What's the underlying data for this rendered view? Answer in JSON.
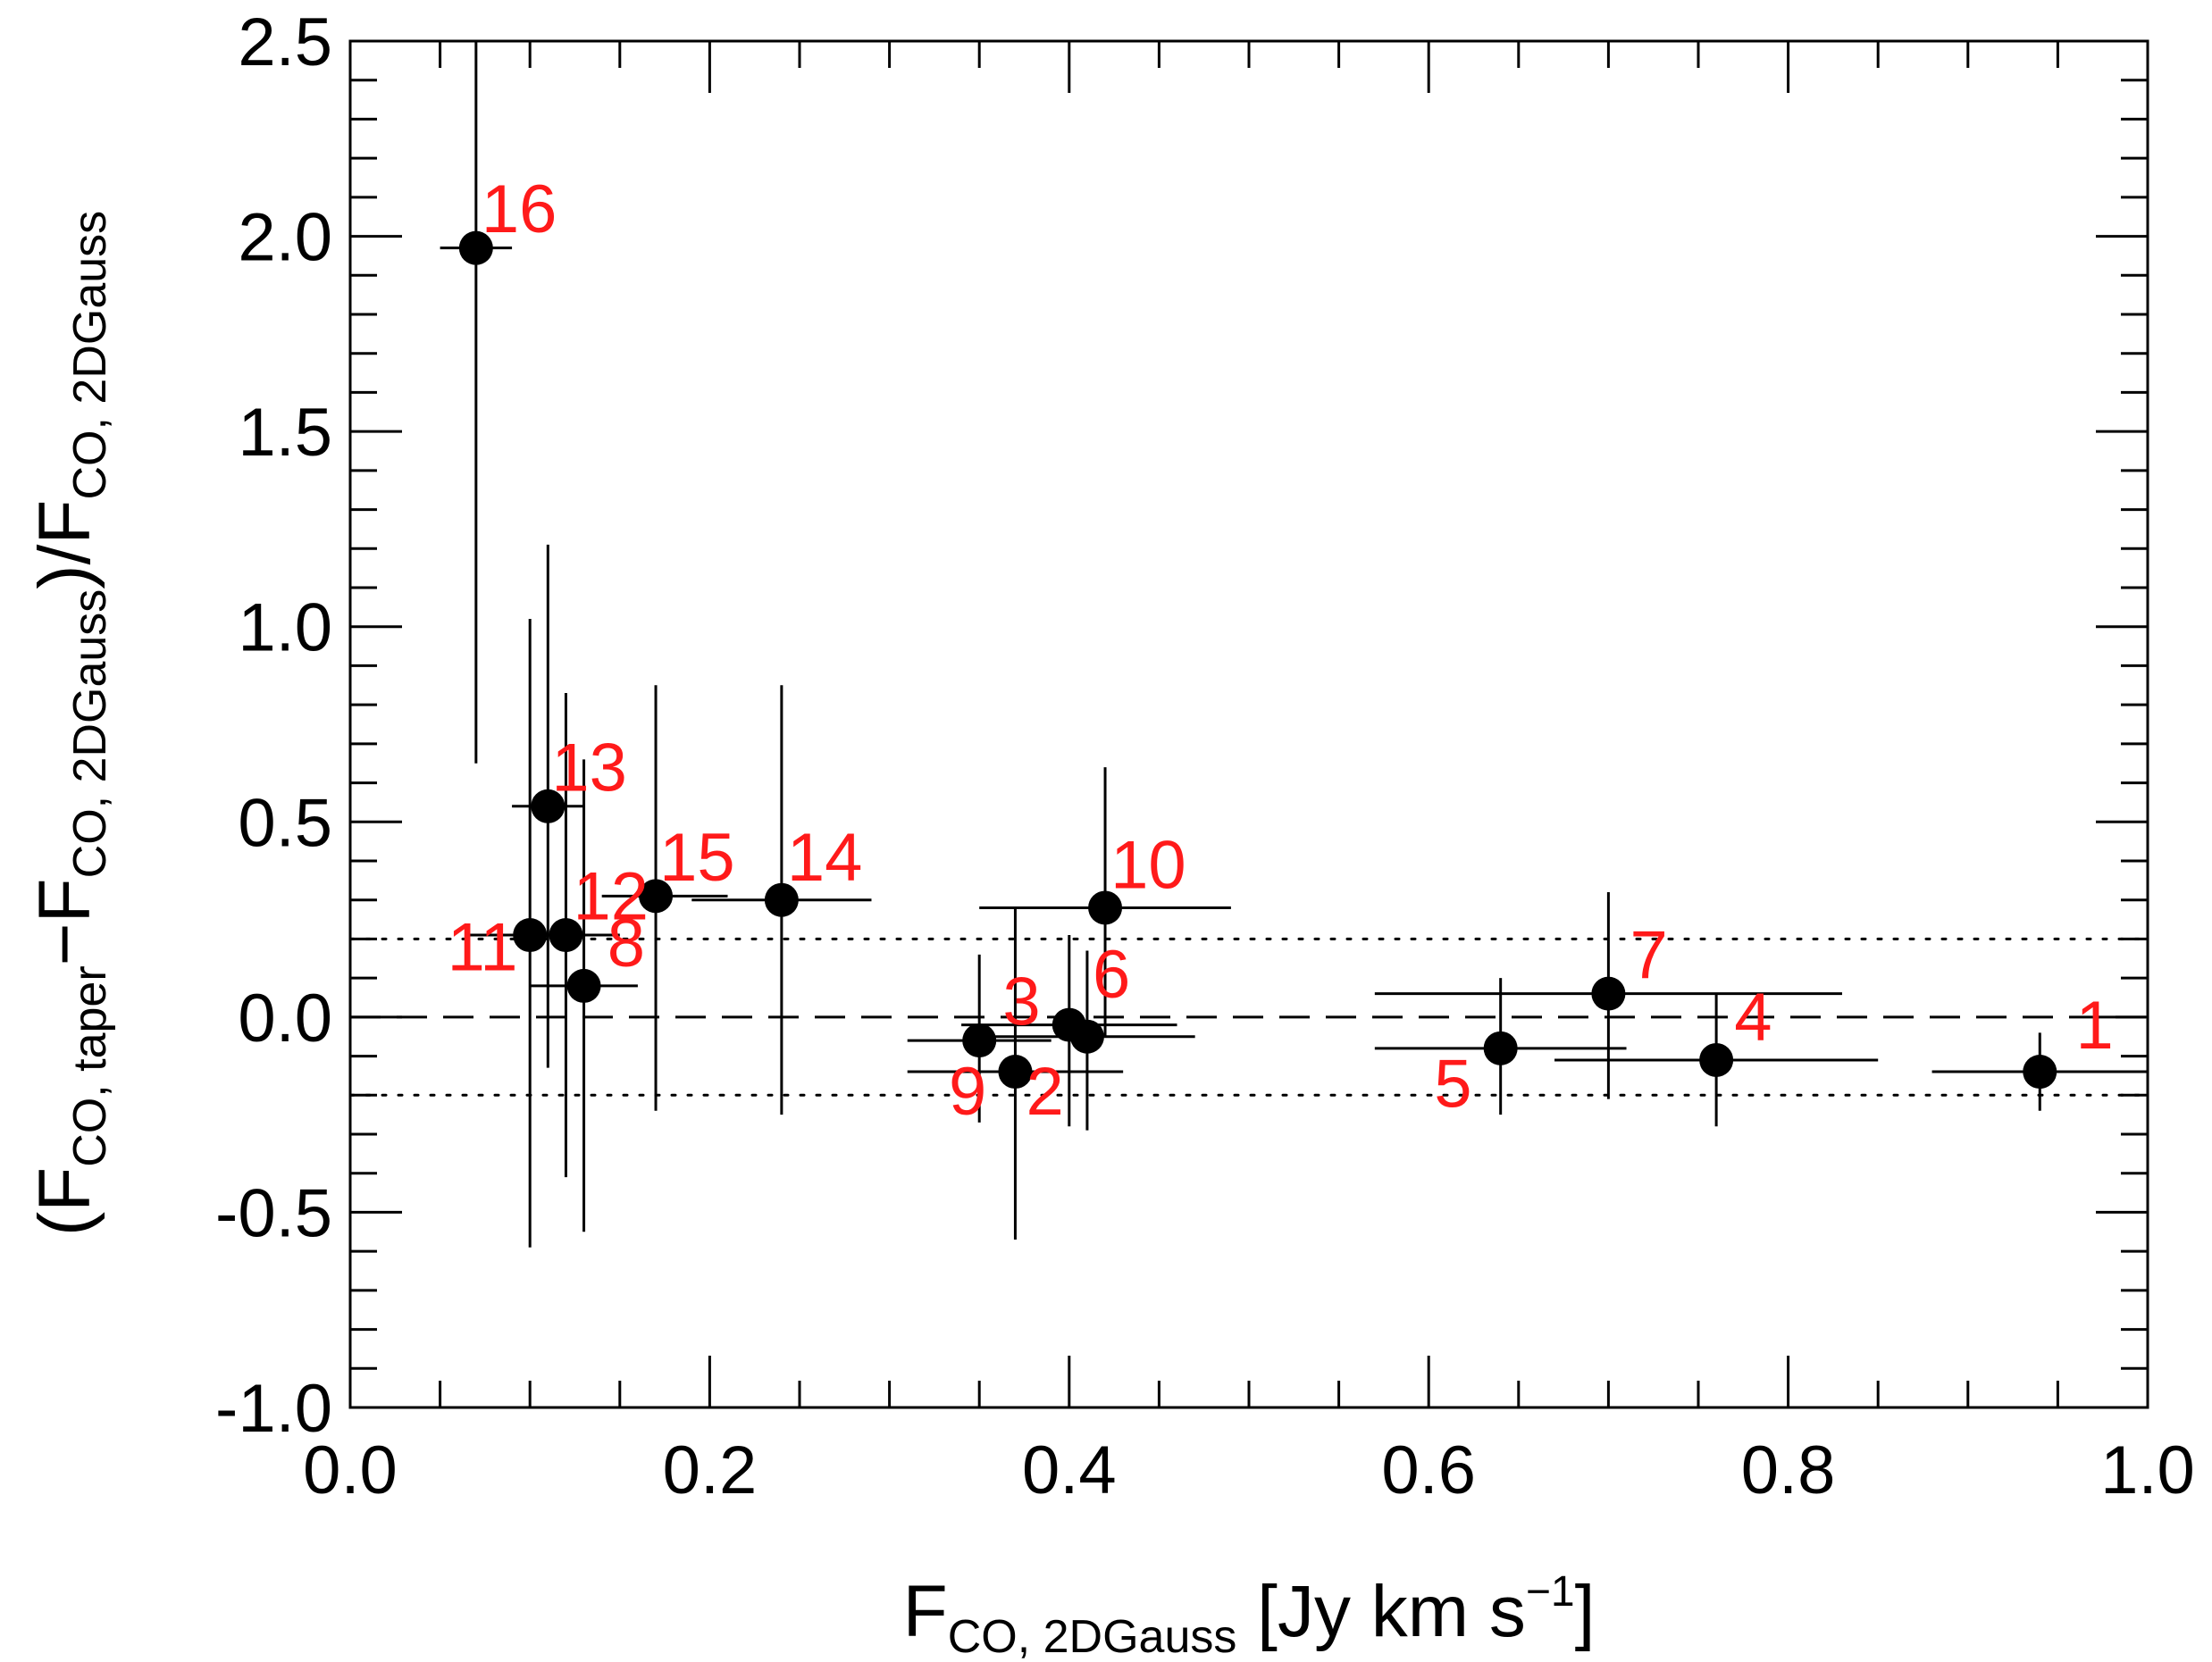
{
  "chart_data": {
    "type": "scatter",
    "title": "",
    "xlabel": {
      "base": "F",
      "sub": "CO, 2DGauss",
      "unit_prefix": " [Jy km s",
      "unit_sup": "−1",
      "unit_suffix": "]"
    },
    "ylabel": {
      "open": "(F",
      "sub1": "CO, taper",
      "minus": "−F",
      "sub2": "CO, 2DGauss",
      "mid": ")/F",
      "sub3": "CO, 2DGauss"
    },
    "xlim": [
      0.0,
      1.0
    ],
    "ylim": [
      -1.0,
      2.5
    ],
    "xticks": [
      0.0,
      0.2,
      0.4,
      0.6,
      0.8,
      1.0
    ],
    "xtick_labels": [
      "0.0",
      "0.2",
      "0.4",
      "0.6",
      "0.8",
      "1.0"
    ],
    "xminor_step": 0.05,
    "yticks": [
      -1.0,
      -0.5,
      0.0,
      0.5,
      1.0,
      1.5,
      2.0,
      2.5
    ],
    "ytick_labels": [
      "-1.0",
      "-0.5",
      "0.0",
      "0.5",
      "1.0",
      "1.5",
      "2.0",
      "2.5"
    ],
    "yminor_step": 0.1,
    "reference_lines": [
      {
        "y": 0.0,
        "style": "dashed"
      },
      {
        "y": 0.2,
        "style": "dotted"
      },
      {
        "y": -0.2,
        "style": "dotted"
      }
    ],
    "points": [
      {
        "label": "1",
        "x": 0.94,
        "y": -0.14,
        "xlo": 0.88,
        "xhi": 1.0,
        "ylo": -0.24,
        "yhi": -0.04,
        "label_dx": 0.02,
        "label_dy": 0.06
      },
      {
        "label": "2",
        "x": 0.37,
        "y": -0.14,
        "xlo": 0.31,
        "xhi": 0.43,
        "ylo": -0.57,
        "yhi": 0.28,
        "label_dx": 0.006,
        "label_dy": -0.11
      },
      {
        "label": "3",
        "x": 0.4,
        "y": -0.02,
        "xlo": 0.34,
        "xhi": 0.46,
        "ylo": -0.28,
        "yhi": 0.21,
        "label_dx": -0.037,
        "label_dy": 0.0
      },
      {
        "label": "4",
        "x": 0.76,
        "y": -0.11,
        "xlo": 0.67,
        "xhi": 0.85,
        "ylo": -0.28,
        "yhi": 0.06,
        "label_dx": 0.01,
        "label_dy": 0.05
      },
      {
        "label": "5",
        "x": 0.64,
        "y": -0.08,
        "xlo": 0.57,
        "xhi": 0.71,
        "ylo": -0.25,
        "yhi": 0.1,
        "label_dx": -0.037,
        "label_dy": -0.15
      },
      {
        "label": "6",
        "x": 0.41,
        "y": -0.05,
        "xlo": 0.35,
        "xhi": 0.47,
        "ylo": -0.29,
        "yhi": 0.17,
        "label_dx": 0.003,
        "label_dy": 0.1
      },
      {
        "label": "7",
        "x": 0.7,
        "y": 0.06,
        "xlo": 0.57,
        "xhi": 0.83,
        "ylo": -0.21,
        "yhi": 0.32,
        "label_dx": 0.012,
        "label_dy": 0.04
      },
      {
        "label": "8",
        "x": 0.13,
        "y": 0.08,
        "xlo": 0.1,
        "xhi": 0.16,
        "ylo": -0.55,
        "yhi": 0.66,
        "label_dx": 0.013,
        "label_dy": 0.05
      },
      {
        "label": "9",
        "x": 0.35,
        "y": -0.06,
        "xlo": 0.31,
        "xhi": 0.39,
        "ylo": -0.27,
        "yhi": 0.16,
        "label_dx": -0.017,
        "label_dy": -0.19
      },
      {
        "label": "10",
        "x": 0.42,
        "y": 0.28,
        "xlo": 0.35,
        "xhi": 0.49,
        "ylo": -0.05,
        "yhi": 0.64,
        "label_dx": 0.003,
        "label_dy": 0.05
      },
      {
        "label": "11",
        "x": 0.1,
        "y": 0.21,
        "xlo": 0.065,
        "xhi": 0.13,
        "ylo": -0.59,
        "yhi": 1.02,
        "label_dx": -0.046,
        "label_dy": -0.09
      },
      {
        "label": "12",
        "x": 0.12,
        "y": 0.21,
        "xlo": 0.09,
        "xhi": 0.15,
        "ylo": -0.41,
        "yhi": 0.83,
        "label_dx": 0.004,
        "label_dy": 0.04
      },
      {
        "label": "13",
        "x": 0.11,
        "y": 0.54,
        "xlo": 0.09,
        "xhi": 0.13,
        "ylo": -0.13,
        "yhi": 1.21,
        "label_dx": 0.002,
        "label_dy": 0.04
      },
      {
        "label": "14",
        "x": 0.24,
        "y": 0.3,
        "xlo": 0.19,
        "xhi": 0.29,
        "ylo": -0.25,
        "yhi": 0.85,
        "label_dx": 0.003,
        "label_dy": 0.05
      },
      {
        "label": "15",
        "x": 0.17,
        "y": 0.31,
        "xlo": 0.14,
        "xhi": 0.21,
        "ylo": -0.24,
        "yhi": 0.85,
        "label_dx": 0.002,
        "label_dy": 0.04
      },
      {
        "label": "16",
        "x": 0.07,
        "y": 1.97,
        "xlo": 0.05,
        "xhi": 0.09,
        "ylo": 0.65,
        "yhi": 2.5,
        "label_dx": 0.003,
        "label_dy": 0.04
      }
    ]
  }
}
